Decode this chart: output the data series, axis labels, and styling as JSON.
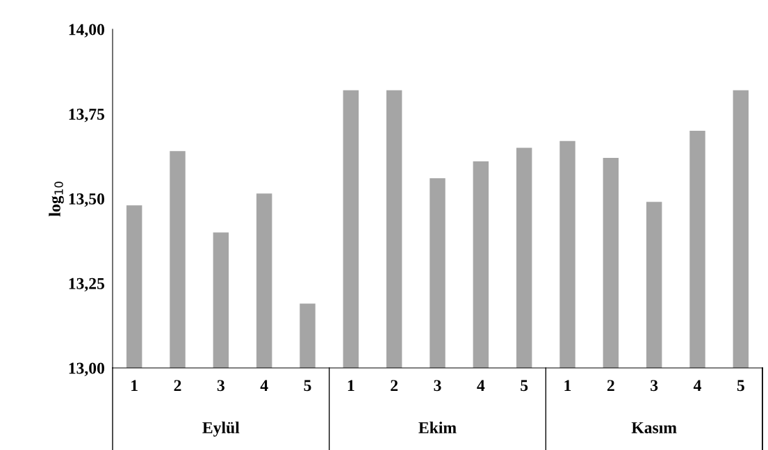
{
  "chart_data": {
    "type": "bar",
    "ylabel": "log$_{10}$",
    "categories": [
      "1",
      "2",
      "3",
      "4",
      "5",
      "1",
      "2",
      "3",
      "4",
      "5",
      "1",
      "2",
      "3",
      "4",
      "5"
    ],
    "values": [
      13.48,
      13.64,
      13.4,
      13.515,
      13.19,
      13.82,
      13.82,
      13.56,
      13.61,
      13.65,
      13.67,
      13.62,
      13.49,
      13.7,
      13.82
    ],
    "color": "#a5a5a5",
    "ylim": [
      13,
      14
    ],
    "yticks": [
      {
        "value": 13,
        "label": "13,00"
      },
      {
        "value": 13.25,
        "label": "13,25"
      },
      {
        "value": 13.5,
        "label": "13,50"
      },
      {
        "value": 13.75,
        "label": "13,75"
      },
      {
        "value": 14,
        "label": "14,00"
      }
    ],
    "annotations": [
      "Eylül",
      "Ekim",
      "Kasım"
    ],
    "grid": false,
    "legend": false
  }
}
